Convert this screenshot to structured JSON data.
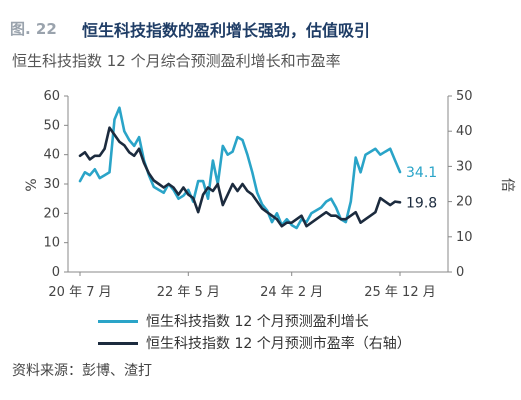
{
  "figure": {
    "label": "图. 22",
    "title": "恒生科技指数的盈利增长强劲，估值吸引",
    "subtitle": "恒生科技指数 12 个月综合预测盈利增长和市盈率",
    "source": "资料来源：彭博、渣打"
  },
  "colors": {
    "growth": "#2aa4c8",
    "pe": "#1c2b3e",
    "axis": "#888888"
  },
  "chart_data": {
    "type": "line",
    "xlabel": "",
    "ylabel_left": "%",
    "ylabel_right": "倍",
    "ylim_left": [
      0,
      60
    ],
    "ylim_right": [
      0,
      50
    ],
    "yticks_left": [
      "0",
      "10",
      "20",
      "30",
      "40",
      "50",
      "60"
    ],
    "yticks_right": [
      "0",
      "10",
      "20",
      "30",
      "40",
      "50"
    ],
    "xticks": [
      {
        "t": 0,
        "label": "20 年 7 月"
      },
      {
        "t": 22,
        "label": "22 年 5 月"
      },
      {
        "t": 43,
        "label": "24 年 2 月"
      },
      {
        "t": 65,
        "label": "25 年 12 月"
      }
    ],
    "x_months": [
      0,
      1,
      2,
      3,
      4,
      5,
      6,
      7,
      8,
      9,
      10,
      11,
      12,
      13,
      14,
      15,
      16,
      17,
      18,
      19,
      20,
      21,
      22,
      23,
      24,
      25,
      26,
      27,
      28,
      29,
      30,
      31,
      32,
      33,
      34,
      35,
      36,
      37,
      38,
      39,
      40,
      41,
      42,
      43,
      44,
      45,
      46,
      47,
      48,
      49,
      50,
      51,
      52,
      53,
      54,
      55,
      56,
      57,
      58,
      59,
      60,
      61,
      62,
      63,
      64,
      65
    ],
    "series": [
      {
        "name": "恒生科技指数 12 个月预测盈利增长",
        "axis": "left",
        "end_label": "34.1",
        "values": [
          31,
          34,
          33,
          35,
          32,
          33,
          34,
          52,
          56,
          48,
          45,
          43,
          46,
          38,
          33,
          29,
          28,
          27,
          30,
          28,
          25,
          26,
          28,
          24,
          31,
          31,
          25,
          38,
          30,
          43,
          40,
          41,
          46,
          45,
          40,
          34,
          27,
          23,
          21,
          17,
          20,
          16,
          18,
          16,
          15,
          18,
          17,
          20,
          21,
          22,
          24,
          25,
          22,
          18,
          17,
          24,
          39,
          34,
          40,
          41,
          42,
          40,
          41,
          42,
          38,
          34.1
        ]
      },
      {
        "name": "恒生科技指数 12 个月预测市盈率（右轴）",
        "axis": "right",
        "end_label": "19.8",
        "values": [
          33,
          34,
          32,
          33,
          33,
          35,
          41,
          39,
          37,
          36,
          34,
          33,
          35,
          31,
          28,
          26,
          25,
          24,
          25,
          24,
          22,
          24,
          22,
          21,
          17,
          22,
          24,
          23,
          25,
          19,
          22,
          25,
          23,
          25,
          23,
          22,
          20,
          18,
          17,
          16,
          15,
          13,
          14,
          14,
          15,
          16,
          13,
          14,
          15,
          16,
          17,
          16,
          16,
          15,
          15,
          16,
          17,
          14,
          15,
          16,
          17,
          21,
          20,
          19,
          20,
          19.8
        ]
      }
    ],
    "legend_position": "bottom",
    "grid": false
  }
}
